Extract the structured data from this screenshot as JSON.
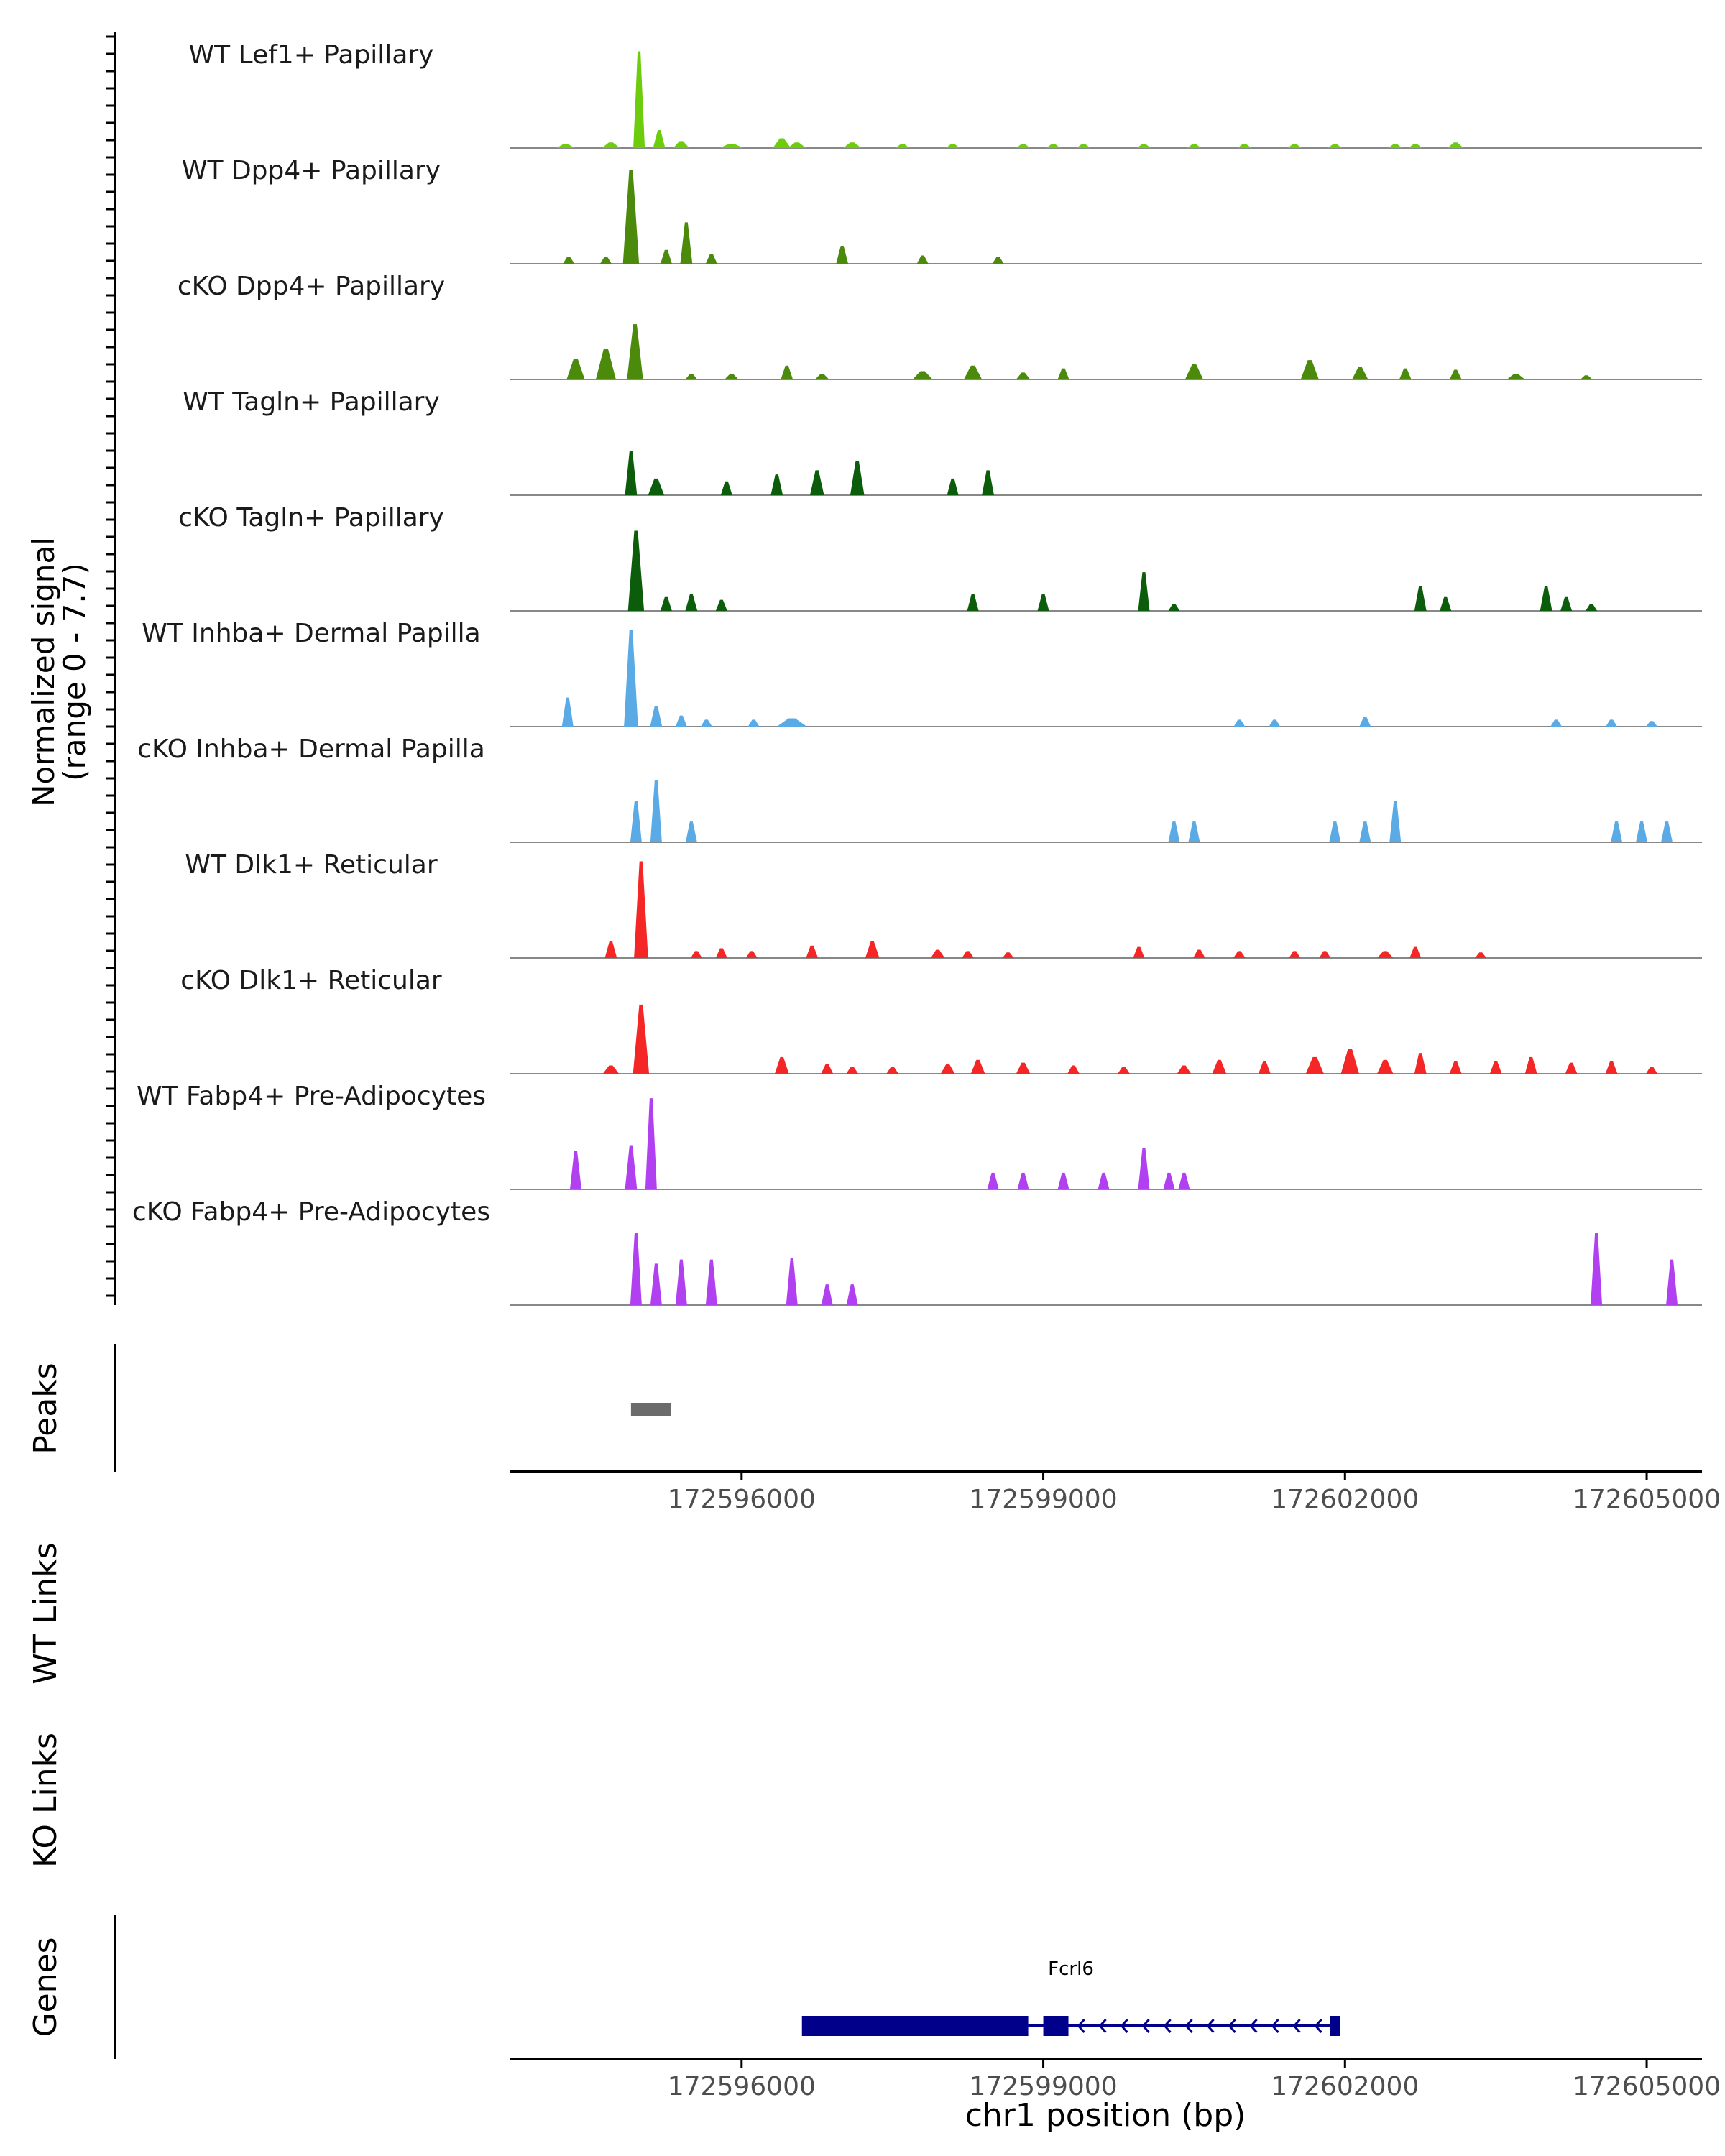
{
  "chart_data": {
    "type": "area",
    "title": "",
    "region": {
      "chrom": "chr1",
      "start": 172593700,
      "end": 172605550
    },
    "xlabel": "chr1 position (bp)",
    "x_ticks": [
      172596000,
      172599000,
      172602000,
      172605000
    ],
    "x_tick_labels": [
      "172596000",
      "172599000",
      "172602000",
      "172605000"
    ],
    "signal_ylabel": [
      "Normalized signal",
      "(range 0 - 7.7)"
    ],
    "ylim": [
      0,
      7.7
    ],
    "tracks": [
      {
        "name": "WT Lef1+ Papillary",
        "color": "#6dcd0d",
        "peaks": [
          [
            172594250,
            90,
            0.3
          ],
          [
            172594700,
            90,
            0.4
          ],
          [
            172594980,
            55,
            7.0
          ],
          [
            172595180,
            60,
            1.3
          ],
          [
            172595400,
            80,
            0.5
          ],
          [
            172595900,
            120,
            0.3
          ],
          [
            172596400,
            90,
            0.7
          ],
          [
            172596550,
            90,
            0.4
          ],
          [
            172597100,
            90,
            0.4
          ],
          [
            172597600,
            70,
            0.3
          ],
          [
            172598100,
            70,
            0.3
          ],
          [
            172598800,
            70,
            0.3
          ],
          [
            172599100,
            70,
            0.3
          ],
          [
            172599400,
            70,
            0.3
          ],
          [
            172600000,
            70,
            0.3
          ],
          [
            172600500,
            70,
            0.3
          ],
          [
            172601000,
            70,
            0.3
          ],
          [
            172601500,
            70,
            0.3
          ],
          [
            172601900,
            70,
            0.3
          ],
          [
            172602500,
            70,
            0.3
          ],
          [
            172602700,
            70,
            0.3
          ],
          [
            172603100,
            80,
            0.4
          ]
        ]
      },
      {
        "name": "WT Dpp4+ Papillary",
        "color": "#4b8a0a",
        "peaks": [
          [
            172594280,
            40,
            0.5
          ],
          [
            172594650,
            50,
            0.5
          ],
          [
            172594900,
            80,
            6.8
          ],
          [
            172595250,
            40,
            1.0
          ],
          [
            172595450,
            60,
            3.0
          ],
          [
            172595700,
            50,
            0.7
          ],
          [
            172597000,
            60,
            1.3
          ],
          [
            172597800,
            40,
            0.6
          ],
          [
            172598550,
            30,
            0.5
          ]
        ]
      },
      {
        "name": "cKO Dpp4+ Papillary",
        "color": "#4b8a0a",
        "peaks": [
          [
            172594350,
            90,
            1.5
          ],
          [
            172594650,
            100,
            2.2
          ],
          [
            172594940,
            80,
            4.0
          ],
          [
            172595500,
            60,
            0.4
          ],
          [
            172595900,
            70,
            0.4
          ],
          [
            172596450,
            60,
            1.0
          ],
          [
            172596800,
            70,
            0.4
          ],
          [
            172597800,
            100,
            0.6
          ],
          [
            172598300,
            90,
            1.0
          ],
          [
            172598800,
            70,
            0.5
          ],
          [
            172599200,
            50,
            0.8
          ],
          [
            172600500,
            90,
            1.1
          ],
          [
            172601650,
            90,
            1.4
          ],
          [
            172602150,
            80,
            0.9
          ],
          [
            172602600,
            60,
            0.8
          ],
          [
            172603100,
            60,
            0.7
          ],
          [
            172603700,
            90,
            0.4
          ],
          [
            172604400,
            60,
            0.3
          ]
        ]
      },
      {
        "name": "WT Tagln+ Papillary",
        "color": "#0b5c0b",
        "peaks": [
          [
            172594900,
            60,
            3.2
          ],
          [
            172595150,
            80,
            1.2
          ],
          [
            172595850,
            50,
            1.0
          ],
          [
            172596350,
            60,
            1.5
          ],
          [
            172596750,
            70,
            1.8
          ],
          [
            172597150,
            70,
            2.5
          ],
          [
            172598100,
            50,
            1.2
          ],
          [
            172598450,
            60,
            1.8
          ]
        ]
      },
      {
        "name": "cKO Tagln+ Papillary",
        "color": "#0b5c0b",
        "peaks": [
          [
            172594950,
            80,
            5.8
          ],
          [
            172595250,
            50,
            1.0
          ],
          [
            172595500,
            60,
            1.2
          ],
          [
            172595800,
            40,
            0.8
          ],
          [
            172598300,
            40,
            1.2
          ],
          [
            172599000,
            40,
            1.2
          ],
          [
            172600000,
            50,
            2.8
          ],
          [
            172600300,
            50,
            0.5
          ],
          [
            172602750,
            60,
            1.8
          ],
          [
            172603000,
            40,
            1.0
          ],
          [
            172604000,
            60,
            1.8
          ],
          [
            172604200,
            40,
            1.0
          ],
          [
            172604450,
            30,
            0.5
          ]
        ]
      },
      {
        "name": "WT Inhba+ Dermal Papilla",
        "color": "#5aaae6",
        "peaks": [
          [
            172594270,
            50,
            2.1
          ],
          [
            172594900,
            70,
            7.0
          ],
          [
            172595150,
            60,
            1.5
          ],
          [
            172595400,
            40,
            0.8
          ],
          [
            172595650,
            30,
            0.5
          ],
          [
            172596120,
            40,
            0.5
          ],
          [
            172596500,
            150,
            0.6
          ],
          [
            172600950,
            30,
            0.5
          ],
          [
            172601300,
            30,
            0.5
          ],
          [
            172602200,
            30,
            0.7
          ],
          [
            172604100,
            30,
            0.5
          ],
          [
            172604650,
            30,
            0.5
          ],
          [
            172605050,
            30,
            0.4
          ]
        ]
      },
      {
        "name": "cKO Inhba+ Dermal Papilla",
        "color": "#5aaae6",
        "peaks": [
          [
            172594950,
            40,
            3.0
          ],
          [
            172595150,
            40,
            4.5
          ],
          [
            172595500,
            40,
            1.5
          ],
          [
            172600300,
            40,
            1.5
          ],
          [
            172600500,
            40,
            1.5
          ],
          [
            172601900,
            40,
            1.5
          ],
          [
            172602200,
            40,
            1.5
          ],
          [
            172602500,
            50,
            3.0
          ],
          [
            172604700,
            50,
            1.5
          ],
          [
            172604950,
            50,
            1.5
          ],
          [
            172605200,
            40,
            1.5
          ]
        ]
      },
      {
        "name": "WT Dlk1+ Reticular",
        "color": "#f42626",
        "peaks": [
          [
            172594700,
            60,
            1.2
          ],
          [
            172595000,
            70,
            7.0
          ],
          [
            172595550,
            50,
            0.5
          ],
          [
            172595800,
            50,
            0.7
          ],
          [
            172596100,
            50,
            0.5
          ],
          [
            172596700,
            60,
            0.9
          ],
          [
            172597300,
            70,
            1.2
          ],
          [
            172597950,
            70,
            0.6
          ],
          [
            172598250,
            60,
            0.5
          ],
          [
            172598650,
            50,
            0.4
          ],
          [
            172599950,
            50,
            0.8
          ],
          [
            172600550,
            60,
            0.6
          ],
          [
            172600950,
            60,
            0.5
          ],
          [
            172601500,
            50,
            0.5
          ],
          [
            172601800,
            50,
            0.5
          ],
          [
            172602400,
            80,
            0.5
          ],
          [
            172602700,
            50,
            0.8
          ],
          [
            172603350,
            40,
            0.4
          ]
        ]
      },
      {
        "name": "cKO Dlk1+ Reticular",
        "color": "#f42626",
        "peaks": [
          [
            172594700,
            80,
            0.6
          ],
          [
            172595000,
            80,
            5.0
          ],
          [
            172596400,
            70,
            1.2
          ],
          [
            172596850,
            60,
            0.7
          ],
          [
            172597100,
            60,
            0.5
          ],
          [
            172597500,
            60,
            0.5
          ],
          [
            172598050,
            70,
            0.7
          ],
          [
            172598350,
            70,
            1.0
          ],
          [
            172598800,
            70,
            0.8
          ],
          [
            172599300,
            60,
            0.6
          ],
          [
            172599800,
            60,
            0.5
          ],
          [
            172600400,
            70,
            0.6
          ],
          [
            172600750,
            70,
            1.0
          ],
          [
            172601200,
            60,
            0.9
          ],
          [
            172601700,
            90,
            1.2
          ],
          [
            172602050,
            90,
            1.8
          ],
          [
            172602400,
            80,
            1.0
          ],
          [
            172602750,
            60,
            1.5
          ],
          [
            172603100,
            60,
            0.9
          ],
          [
            172603500,
            60,
            0.9
          ],
          [
            172603850,
            60,
            1.2
          ],
          [
            172604250,
            60,
            0.8
          ],
          [
            172604650,
            60,
            0.9
          ],
          [
            172605050,
            50,
            0.5
          ]
        ]
      },
      {
        "name": "WT Fabp4+ Pre-Adipocytes",
        "color": "#b040f0",
        "peaks": [
          [
            172594350,
            40,
            2.8
          ],
          [
            172594900,
            60,
            3.2
          ],
          [
            172595100,
            50,
            6.6
          ],
          [
            172598500,
            40,
            1.2
          ],
          [
            172598800,
            40,
            1.2
          ],
          [
            172599200,
            40,
            1.2
          ],
          [
            172599600,
            40,
            1.2
          ],
          [
            172600000,
            50,
            3.0
          ],
          [
            172600250,
            40,
            1.2
          ],
          [
            172600400,
            40,
            1.2
          ]
        ]
      },
      {
        "name": "cKO Fabp4+ Pre-Adipocytes",
        "color": "#b040f0",
        "peaks": [
          [
            172594950,
            50,
            5.2
          ],
          [
            172595150,
            40,
            3.0
          ],
          [
            172595400,
            40,
            3.3
          ],
          [
            172595700,
            40,
            3.3
          ],
          [
            172596500,
            40,
            3.4
          ],
          [
            172596850,
            30,
            1.5
          ],
          [
            172597100,
            30,
            1.5
          ],
          [
            172604500,
            50,
            5.2
          ],
          [
            172605250,
            40,
            3.3
          ]
        ]
      }
    ],
    "peaks_track": {
      "label": "Peaks",
      "color": "#6b6b6b",
      "regions": [
        [
          172594900,
          172595300
        ]
      ]
    },
    "links_tracks": [
      {
        "label": "WT Links",
        "links": []
      },
      {
        "label": "KO Links",
        "links": []
      }
    ],
    "genes_track": {
      "label": "Genes",
      "color": "#00008b",
      "genes": [
        {
          "name": "Fcrl6",
          "strand": "-",
          "start": 172596600,
          "end": 172601950,
          "thick_blocks": [
            [
              172596600,
              172598850
            ],
            [
              172599000,
              172599250
            ],
            [
              172601850,
              172601950
            ]
          ],
          "intron_line": [
            172598850,
            172601950
          ]
        }
      ]
    }
  }
}
